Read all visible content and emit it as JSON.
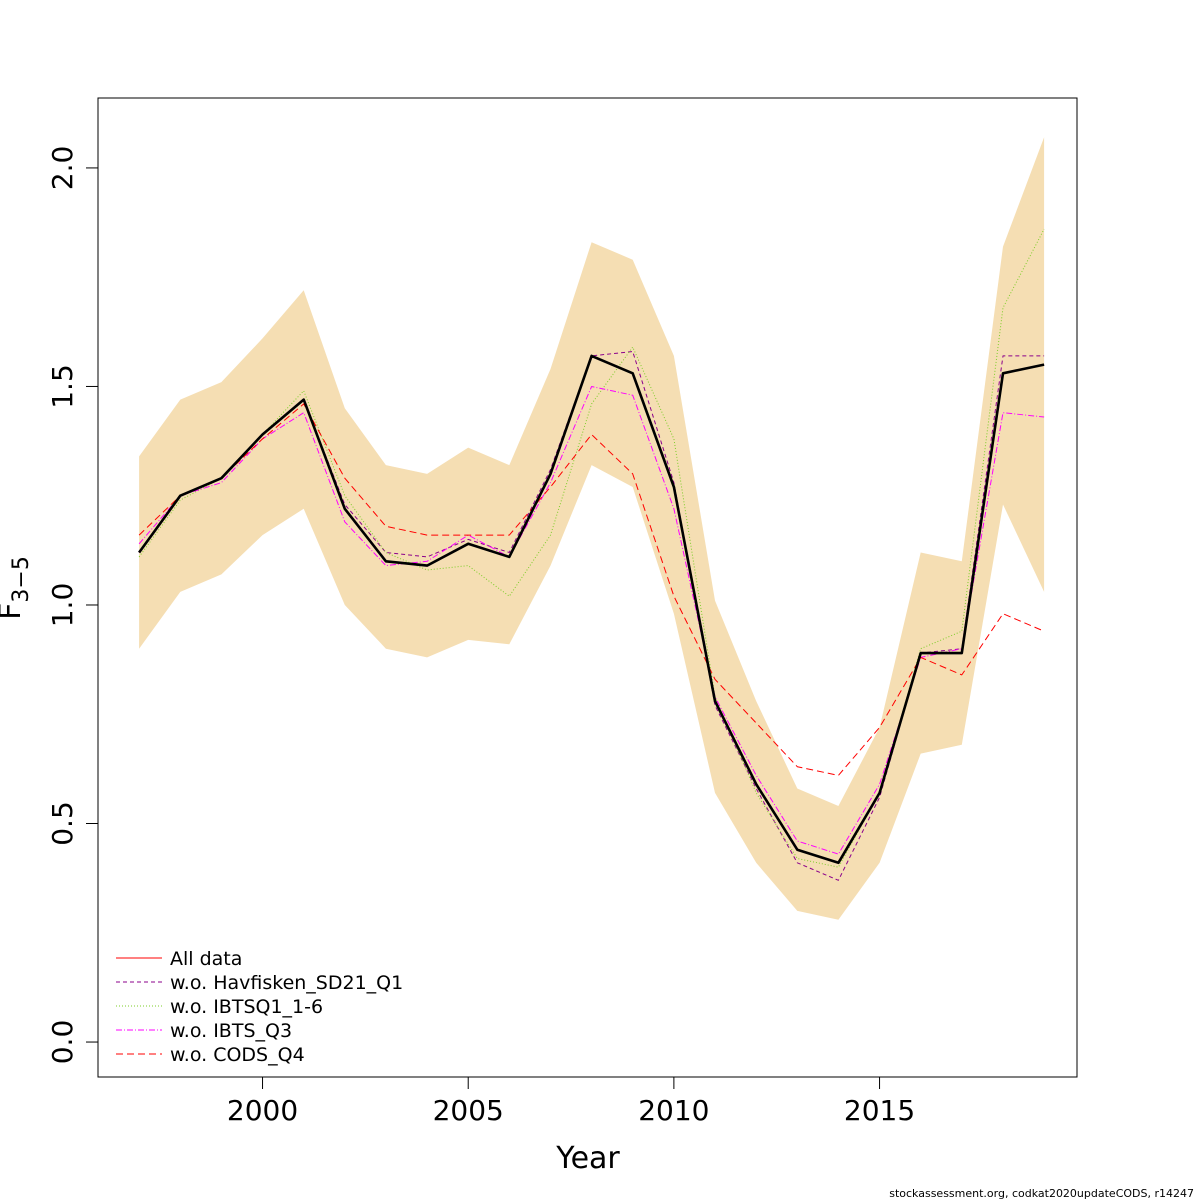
{
  "chart_data": {
    "type": "line",
    "xlabel": "Year",
    "ylabel": "F",
    "ylabel_sub": "3−5",
    "xlim": [
      1996.0,
      2019.8
    ],
    "ylim": [
      -0.08,
      2.16
    ],
    "xticks": [
      2000,
      2005,
      2010,
      2015
    ],
    "yticks": [
      0.0,
      0.5,
      1.0,
      1.5,
      2.0
    ],
    "ytick_labels": [
      "0.0",
      "0.5",
      "1.0",
      "1.5",
      "2.0"
    ],
    "x": [
      1997,
      1998,
      1999,
      2000,
      2001,
      2002,
      2003,
      2004,
      2005,
      2006,
      2007,
      2008,
      2009,
      2010,
      2011,
      2012,
      2013,
      2014,
      2015,
      2016,
      2017,
      2018,
      2019
    ],
    "band": {
      "color": "#F5DEB3",
      "lower": [
        0.9,
        1.03,
        1.07,
        1.16,
        1.22,
        1.0,
        0.9,
        0.88,
        0.92,
        0.91,
        1.09,
        1.32,
        1.27,
        0.98,
        0.57,
        0.41,
        0.3,
        0.28,
        0.41,
        0.66,
        0.68,
        1.23,
        1.03
      ],
      "upper": [
        1.34,
        1.47,
        1.51,
        1.61,
        1.72,
        1.45,
        1.32,
        1.3,
        1.36,
        1.32,
        1.54,
        1.83,
        1.79,
        1.57,
        1.01,
        0.78,
        0.58,
        0.54,
        0.72,
        1.12,
        1.1,
        1.82,
        2.07
      ]
    },
    "series": [
      {
        "name": "",
        "color": "#000000",
        "dash": "",
        "width": 2.6,
        "values": [
          1.12,
          1.25,
          1.29,
          1.39,
          1.47,
          1.22,
          1.1,
          1.09,
          1.14,
          1.11,
          1.3,
          1.57,
          1.53,
          1.27,
          0.78,
          0.59,
          0.44,
          0.41,
          0.57,
          0.89,
          0.89,
          1.53,
          1.55
        ]
      },
      {
        "name": "All data",
        "color": "#FF0000",
        "dash": "",
        "width": 1,
        "values": [
          1.12,
          1.25,
          1.29,
          1.39,
          1.47,
          1.22,
          1.1,
          1.09,
          1.14,
          1.11,
          1.3,
          1.57,
          1.53,
          1.27,
          0.78,
          0.59,
          0.44,
          0.41,
          0.57,
          0.89,
          0.89,
          1.53,
          1.55
        ]
      },
      {
        "name": "w.o. Havfisken_SD21_Q1",
        "color": "#8B008B",
        "dash": "4,3",
        "width": 1,
        "values": [
          1.12,
          1.25,
          1.29,
          1.39,
          1.47,
          1.23,
          1.12,
          1.11,
          1.15,
          1.12,
          1.31,
          1.57,
          1.58,
          1.28,
          0.77,
          0.58,
          0.41,
          0.37,
          0.56,
          0.89,
          0.9,
          1.57,
          1.57
        ]
      },
      {
        "name": "w.o. IBTSQ1_1-6",
        "color": "#7CCD28",
        "dash": "1,2",
        "width": 1,
        "values": [
          1.11,
          1.24,
          1.29,
          1.39,
          1.49,
          1.25,
          1.12,
          1.08,
          1.09,
          1.02,
          1.16,
          1.46,
          1.59,
          1.38,
          0.79,
          0.57,
          0.42,
          0.4,
          0.57,
          0.9,
          0.94,
          1.68,
          1.86
        ]
      },
      {
        "name": "w.o. IBTS_Q3",
        "color": "#FF00FF",
        "dash": "6,2,1,2",
        "width": 1,
        "values": [
          1.14,
          1.25,
          1.28,
          1.38,
          1.44,
          1.19,
          1.09,
          1.1,
          1.16,
          1.11,
          1.28,
          1.5,
          1.48,
          1.22,
          0.79,
          0.61,
          0.46,
          0.43,
          0.59,
          0.88,
          0.9,
          1.44,
          1.43
        ]
      },
      {
        "name": "w.o. CODS_Q4",
        "color": "#FF0000",
        "dash": "7,4",
        "width": 1,
        "values": [
          1.16,
          1.25,
          1.29,
          1.38,
          1.46,
          1.29,
          1.18,
          1.16,
          1.16,
          1.16,
          1.27,
          1.39,
          1.3,
          1.02,
          0.83,
          0.73,
          0.63,
          0.61,
          0.72,
          0.88,
          0.84,
          0.98,
          0.94
        ]
      }
    ],
    "legend": {
      "position": "bottom-left",
      "entries": [
        {
          "label": "All data",
          "color": "#FF0000",
          "dash": ""
        },
        {
          "label": "w.o. Havfisken_SD21_Q1",
          "color": "#8B008B",
          "dash": "4,3"
        },
        {
          "label": "w.o. IBTSQ1_1-6",
          "color": "#7CCD28",
          "dash": "1,2"
        },
        {
          "label": "w.o. IBTS_Q3",
          "color": "#FF00FF",
          "dash": "6,2,1,2"
        },
        {
          "label": "w.o. CODS_Q4",
          "color": "#FF0000",
          "dash": "7,4"
        }
      ]
    }
  },
  "footer": "stockassessment.org, codkat2020updateCODS, r14247"
}
